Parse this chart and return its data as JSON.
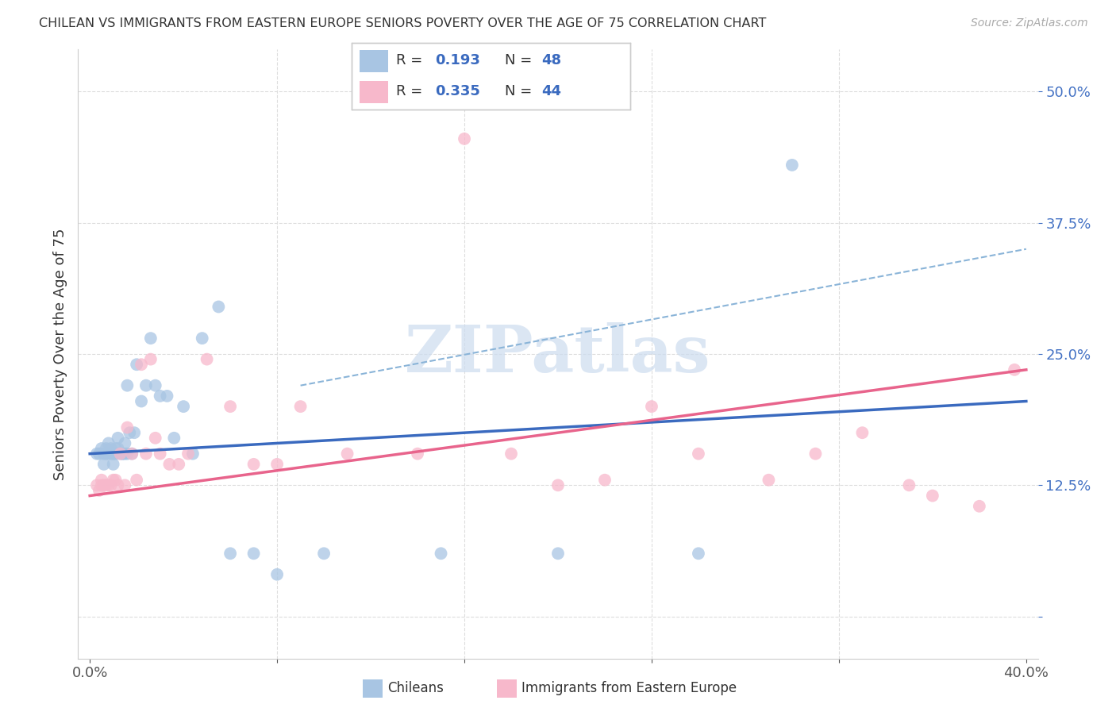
{
  "title": "CHILEAN VS IMMIGRANTS FROM EASTERN EUROPE SENIORS POVERTY OVER THE AGE OF 75 CORRELATION CHART",
  "source": "Source: ZipAtlas.com",
  "ylabel": "Seniors Poverty Over the Age of 75",
  "xlim": [
    0.0,
    0.4
  ],
  "ylim": [
    -0.04,
    0.54
  ],
  "yticks": [
    0.0,
    0.125,
    0.25,
    0.375,
    0.5
  ],
  "ytick_labels": [
    "",
    "12.5%",
    "25.0%",
    "37.5%",
    "50.0%"
  ],
  "xtick_labels": [
    "0.0%",
    "",
    "",
    "",
    "",
    "40.0%"
  ],
  "chilean_R": "0.193",
  "chilean_N": "48",
  "eastern_R": "0.335",
  "eastern_N": "44",
  "chilean_color": "#a8c5e3",
  "eastern_color": "#f7b8cb",
  "chilean_line_color": "#3a6abf",
  "eastern_line_color": "#e8648c",
  "dashed_line_color": "#8ab4d8",
  "watermark_color": "#ccdcef",
  "chilean_x": [
    0.003,
    0.004,
    0.005,
    0.006,
    0.006,
    0.007,
    0.007,
    0.008,
    0.008,
    0.009,
    0.009,
    0.01,
    0.01,
    0.01,
    0.011,
    0.011,
    0.012,
    0.012,
    0.013,
    0.014,
    0.014,
    0.015,
    0.015,
    0.016,
    0.016,
    0.017,
    0.018,
    0.019,
    0.02,
    0.022,
    0.024,
    0.026,
    0.028,
    0.03,
    0.033,
    0.036,
    0.04,
    0.044,
    0.048,
    0.055,
    0.06,
    0.07,
    0.08,
    0.1,
    0.15,
    0.2,
    0.26,
    0.3
  ],
  "chilean_y": [
    0.155,
    0.155,
    0.16,
    0.155,
    0.145,
    0.155,
    0.16,
    0.155,
    0.165,
    0.155,
    0.16,
    0.155,
    0.155,
    0.145,
    0.155,
    0.16,
    0.16,
    0.17,
    0.155,
    0.155,
    0.155,
    0.155,
    0.165,
    0.155,
    0.22,
    0.175,
    0.155,
    0.175,
    0.24,
    0.205,
    0.22,
    0.265,
    0.22,
    0.21,
    0.21,
    0.17,
    0.2,
    0.155,
    0.265,
    0.295,
    0.06,
    0.06,
    0.04,
    0.06,
    0.06,
    0.06,
    0.06,
    0.43
  ],
  "eastern_x": [
    0.003,
    0.004,
    0.005,
    0.005,
    0.006,
    0.007,
    0.008,
    0.009,
    0.01,
    0.011,
    0.012,
    0.013,
    0.015,
    0.016,
    0.018,
    0.02,
    0.022,
    0.024,
    0.026,
    0.028,
    0.03,
    0.034,
    0.038,
    0.042,
    0.05,
    0.06,
    0.07,
    0.08,
    0.09,
    0.11,
    0.14,
    0.16,
    0.18,
    0.2,
    0.22,
    0.24,
    0.26,
    0.29,
    0.31,
    0.33,
    0.35,
    0.36,
    0.38,
    0.395
  ],
  "eastern_y": [
    0.125,
    0.12,
    0.125,
    0.13,
    0.125,
    0.125,
    0.125,
    0.125,
    0.13,
    0.13,
    0.125,
    0.155,
    0.125,
    0.18,
    0.155,
    0.13,
    0.24,
    0.155,
    0.245,
    0.17,
    0.155,
    0.145,
    0.145,
    0.155,
    0.245,
    0.2,
    0.145,
    0.145,
    0.2,
    0.155,
    0.155,
    0.455,
    0.155,
    0.125,
    0.13,
    0.2,
    0.155,
    0.13,
    0.155,
    0.175,
    0.125,
    0.115,
    0.105,
    0.235
  ],
  "chilean_line_x": [
    0.0,
    0.4
  ],
  "chilean_line_y": [
    0.155,
    0.205
  ],
  "eastern_line_x": [
    0.0,
    0.4
  ],
  "eastern_line_y": [
    0.115,
    0.235
  ],
  "dashed_line_x": [
    0.09,
    0.4
  ],
  "dashed_line_y": [
    0.22,
    0.35
  ]
}
